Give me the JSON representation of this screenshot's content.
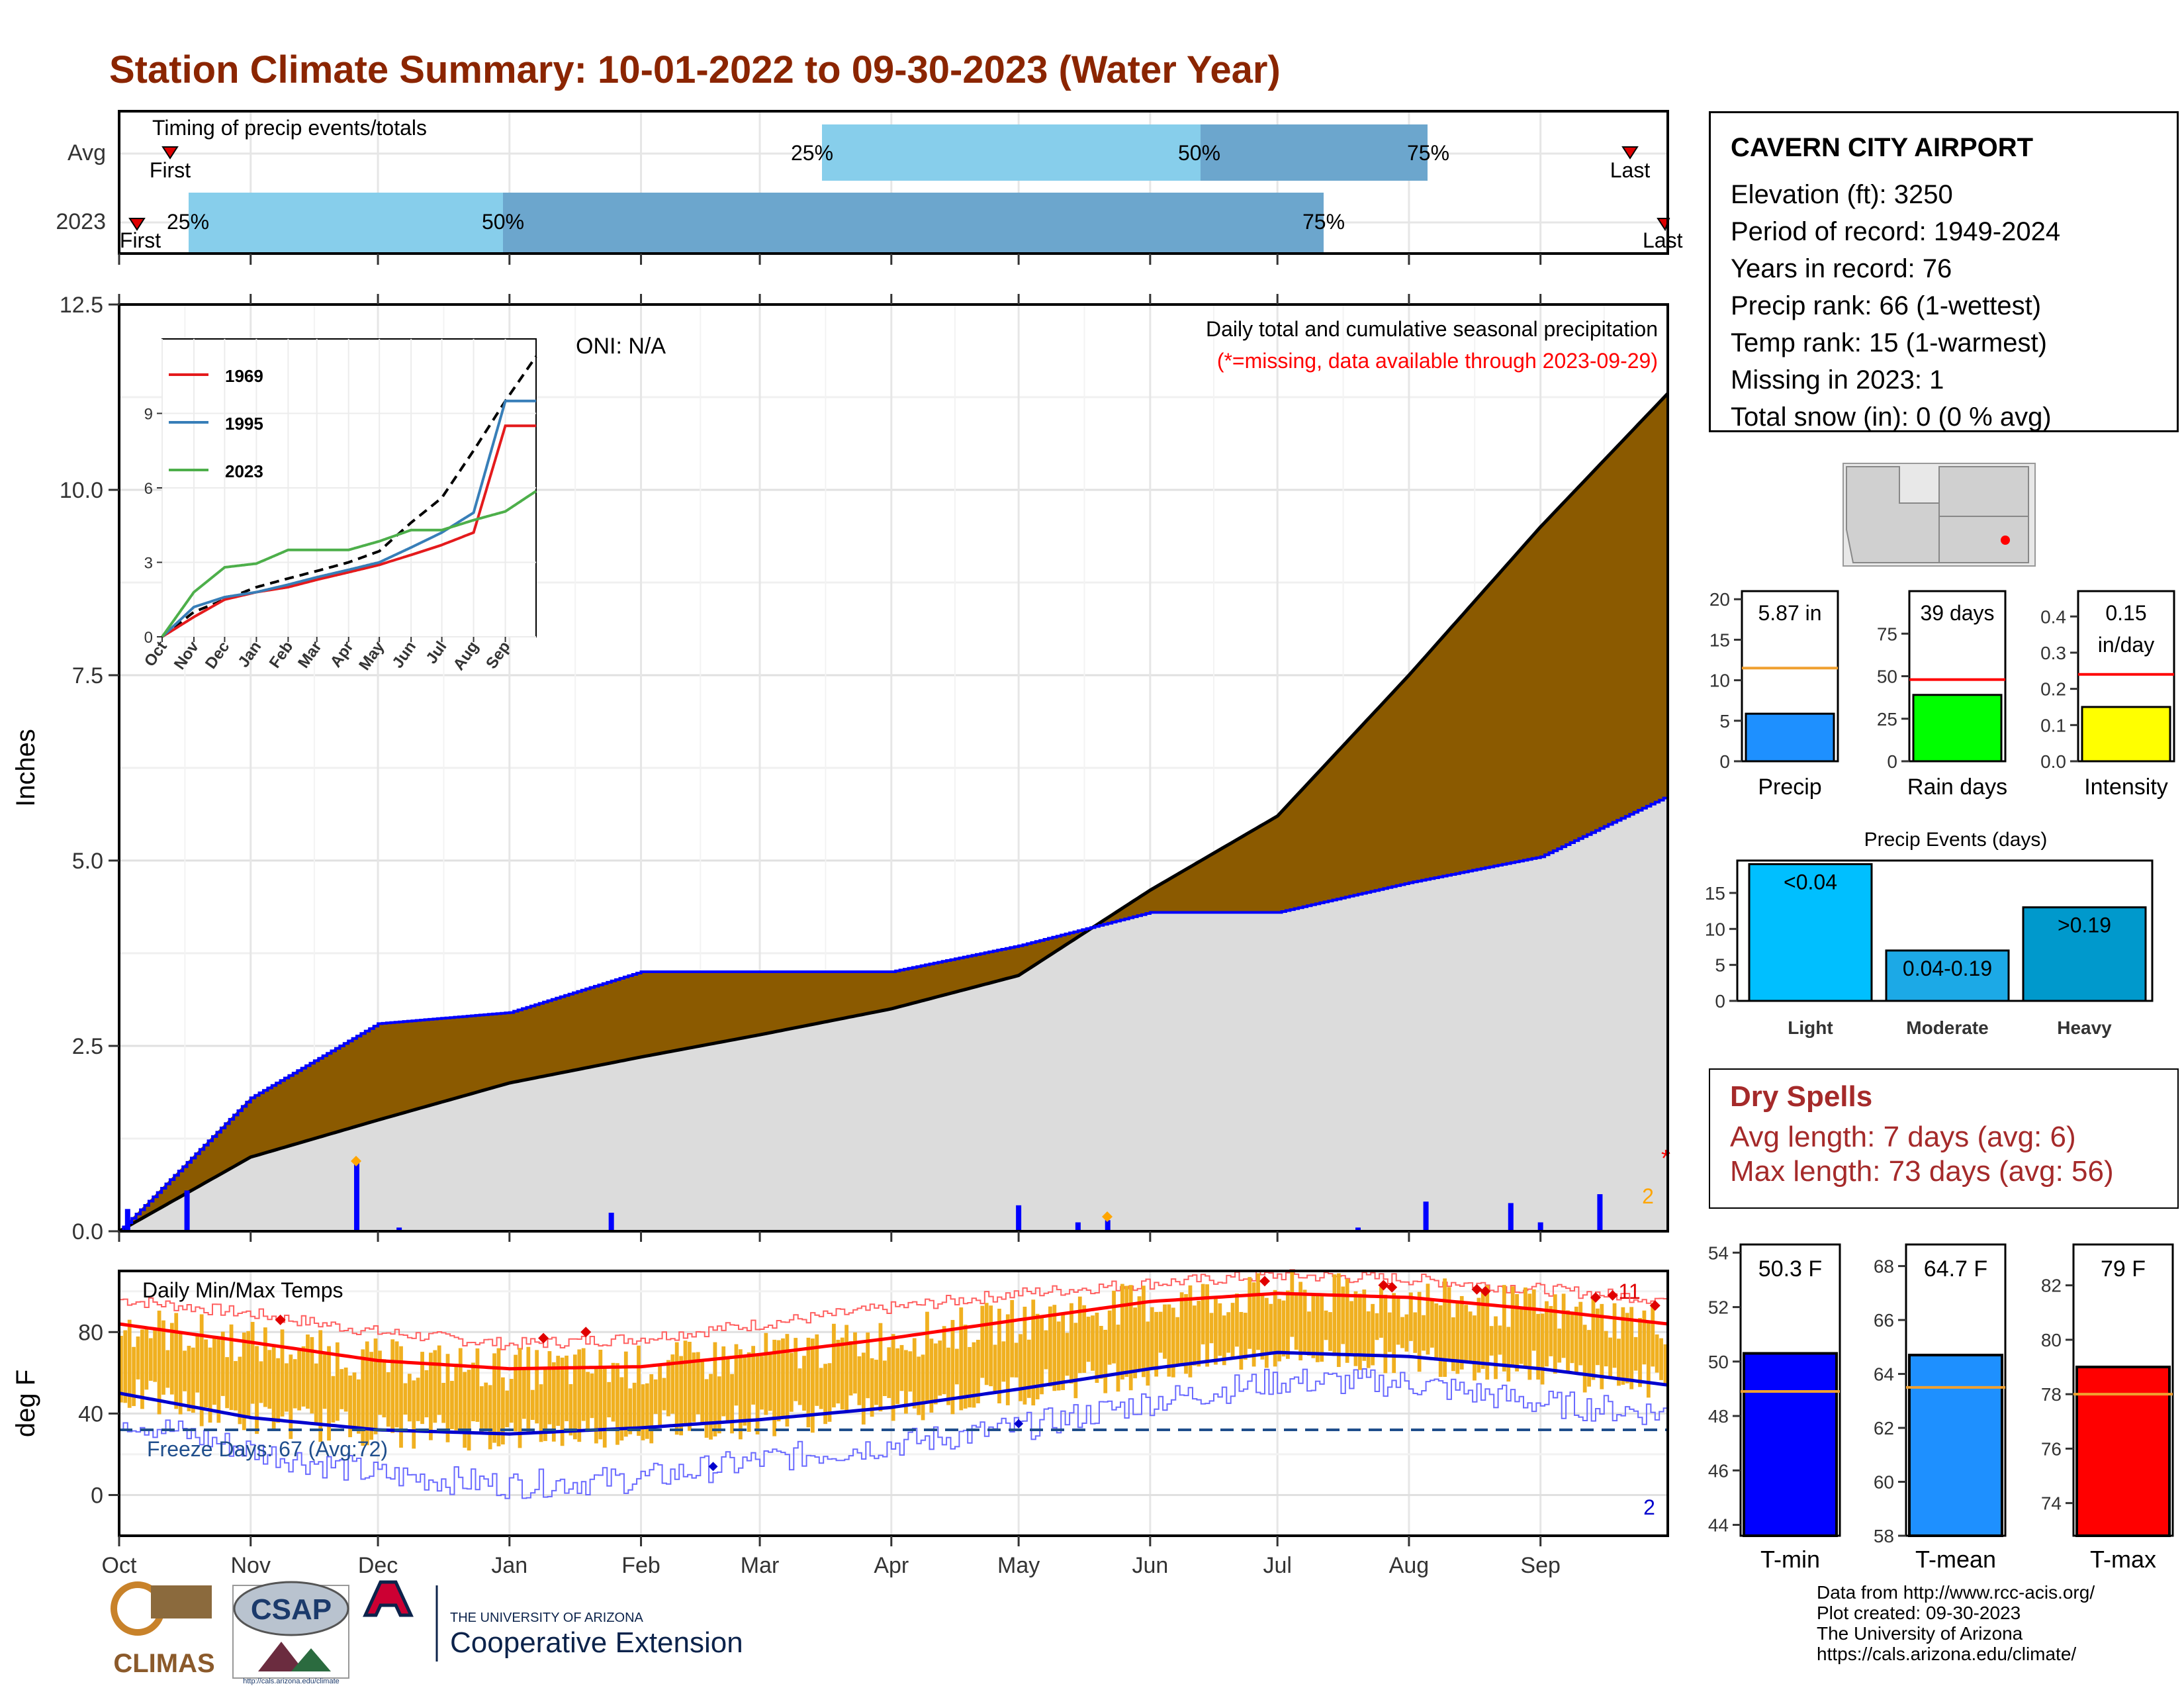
{
  "title": "Station Climate Summary: 10-01-2022 to 09-30-2023 (Water Year)",
  "timing": {
    "label": "Timing of precip events/totals",
    "rows": [
      {
        "name": "Avg",
        "first_label": "First",
        "last_label": "Last",
        "p25": "25%",
        "p50": "50%",
        "p75": "75%"
      },
      {
        "name": "2023",
        "first_label": "First",
        "last_label": "Last",
        "p25": "25%",
        "p50": "50%",
        "p75": "75%"
      }
    ]
  },
  "station": {
    "name": "CAVERN CITY AIRPORT",
    "lines": [
      "Elevation (ft): 3250",
      "Period of record: 1949-2024",
      "Years in record: 76",
      "Precip rank: 66 (1-wettest)",
      "Temp rank: 15 (1-warmest)",
      "Missing in 2023: 1",
      "Total snow (in): 0 (0 % avg)"
    ]
  },
  "precip_panel": {
    "ylabel": "Inches",
    "header": "Daily total and cumulative seasonal precipitation",
    "note": "(*=missing, data available through 2023-09-29)",
    "oni": "ONI: N/A",
    "missing_mark": "*",
    "missing_count": "2",
    "y_ticks": [
      "0.0",
      "2.5",
      "5.0",
      "7.5",
      "10.0",
      "12.5"
    ]
  },
  "inset": {
    "legend": [
      "1969",
      "1995",
      "2023"
    ],
    "y_ticks": [
      "0",
      "3",
      "6",
      "9"
    ],
    "x_ticks": [
      "Oct",
      "Nov",
      "Dec",
      "Jan",
      "Feb",
      "Mar",
      "Apr",
      "May",
      "Jun",
      "Jul",
      "Aug",
      "Sep"
    ]
  },
  "temp_panel": {
    "ylabel": "deg F",
    "label": "Daily Min/Max Temps",
    "freeze": "Freeze Days: 67 (Avg:72)",
    "record_high_count": "11",
    "record_low_count": "2",
    "y_ticks": [
      "0",
      "40",
      "80"
    ]
  },
  "months": [
    "Oct",
    "Nov",
    "Dec",
    "Jan",
    "Feb",
    "Mar",
    "Apr",
    "May",
    "Jun",
    "Jul",
    "Aug",
    "Sep"
  ],
  "mini_precip": [
    {
      "value_label": "5.87 in",
      "name": "Precip",
      "ticks": [
        "0",
        "5",
        "10",
        "15",
        "20"
      ]
    },
    {
      "value_label": "39 days",
      "name": "Rain days",
      "ticks": [
        "0",
        "25",
        "50",
        "75"
      ]
    },
    {
      "value_label": "0.15",
      "value_label2": "in/day",
      "name": "Intensity",
      "ticks": [
        "0.0",
        "0.1",
        "0.2",
        "0.3",
        "0.4"
      ]
    }
  ],
  "events": {
    "title": "Precip Events (days)",
    "ticks": [
      "0",
      "5",
      "10",
      "15"
    ],
    "bars": [
      {
        "label": "<0.04",
        "name": "Light"
      },
      {
        "label": "0.04-0.19",
        "name": "Moderate"
      },
      {
        "label": ">0.19",
        "name": "Heavy"
      }
    ]
  },
  "dry_spells": {
    "title": "Dry Spells",
    "avg": "Avg length: 7 days (avg: 6)",
    "max": "Max length: 73 days (avg: 56)"
  },
  "mini_temp": [
    {
      "value_label": "50.3 F",
      "name": "T-min",
      "ticks": [
        "44",
        "46",
        "48",
        "50",
        "52",
        "54"
      ]
    },
    {
      "value_label": "64.7 F",
      "name": "T-mean",
      "ticks": [
        "58",
        "60",
        "62",
        "64",
        "66",
        "68"
      ]
    },
    {
      "value_label": "79 F",
      "name": "T-max",
      "ticks": [
        "74",
        "76",
        "78",
        "80",
        "82"
      ]
    }
  ],
  "footer": "Data from http://www.rcc-acis.org/\nPlot created: 09-30-2023\nThe University of Arizona\nhttps://cals.arizona.edu/climate/",
  "logos": {
    "climas": "CLIMAS",
    "csap": "CSAP",
    "csap_url": "http://cals.arizona.edu/climate",
    "ua_small": "THE UNIVERSITY OF ARIZONA",
    "ua_big": "Cooperative Extension"
  },
  "colors": {
    "title": "#8b2500",
    "dry": "#a52a2a",
    "above": "#8b5a00",
    "below": "#008000",
    "avg_fill": "#dcdcdc",
    "obs_line": "#0000ff",
    "timing_light": "#87ceeb",
    "timing_dark": "#6ca6cd",
    "tmax": "#ff0000",
    "tmin": "#0000cd",
    "range": "#f0b020"
  },
  "chart_data": [
    {
      "type": "area",
      "title": "Daily total and cumulative seasonal precipitation",
      "ylabel": "Inches",
      "ylim": [
        0,
        12.5
      ],
      "x": [
        "Oct",
        "Nov",
        "Dec",
        "Jan",
        "Feb",
        "Mar",
        "Apr",
        "May",
        "Jun",
        "Jul",
        "Aug",
        "Sep",
        "Oct"
      ],
      "series": [
        {
          "values": [
            0.0,
            1.8,
            2.8,
            2.95,
            3.5,
            3.5,
            3.5,
            3.85,
            4.3,
            4.3,
            4.7,
            5.05,
            5.87
          ]
        },
        {
          "values": [
            0.0,
            1.0,
            1.5,
            2.0,
            2.35,
            2.65,
            3.0,
            3.45,
            4.6,
            5.6,
            7.5,
            9.5,
            11.3
          ]
        }
      ],
      "daily_precip_spikes": [
        {
          "date": "2022-10-03",
          "inches": 0.3
        },
        {
          "date": "2022-10-17",
          "inches": 0.55
        },
        {
          "date": "2022-11-26",
          "inches": 0.95
        },
        {
          "date": "2022-12-06",
          "inches": 0.05
        },
        {
          "date": "2023-01-25",
          "inches": 0.25
        },
        {
          "date": "2023-05-01",
          "inches": 0.35
        },
        {
          "date": "2023-05-15",
          "inches": 0.12
        },
        {
          "date": "2023-05-22",
          "inches": 0.15
        },
        {
          "date": "2023-07-20",
          "inches": 0.05
        },
        {
          "date": "2023-08-05",
          "inches": 0.4
        },
        {
          "date": "2023-08-25",
          "inches": 0.38
        },
        {
          "date": "2023-09-01",
          "inches": 0.12
        },
        {
          "date": "2023-09-15",
          "inches": 0.5
        }
      ]
    },
    {
      "type": "line",
      "ylim": [
        0,
        12
      ],
      "x": [
        "Oct",
        "Nov",
        "Dec",
        "Jan",
        "Feb",
        "Mar",
        "Apr",
        "May",
        "Jun",
        "Jul",
        "Aug",
        "Sep",
        "Oct"
      ],
      "series": [
        {
          "name": "1969",
          "values": [
            0.0,
            0.8,
            1.5,
            1.8,
            2.0,
            2.3,
            2.6,
            2.9,
            3.3,
            3.7,
            4.2,
            8.5,
            8.5
          ]
        },
        {
          "name": "1995",
          "values": [
            0.0,
            1.2,
            1.6,
            1.8,
            2.1,
            2.4,
            2.7,
            3.0,
            3.6,
            4.2,
            5.0,
            9.5,
            9.5
          ]
        },
        {
          "name": "2023",
          "values": [
            0.0,
            1.8,
            2.8,
            2.95,
            3.5,
            3.5,
            3.5,
            3.85,
            4.3,
            4.3,
            4.7,
            5.05,
            5.87
          ]
        },
        {
          "values": [
            0.0,
            1.0,
            1.5,
            2.0,
            2.35,
            2.65,
            3.0,
            3.45,
            4.6,
            5.6,
            7.5,
            9.5,
            11.3
          ]
        }
      ]
    },
    {
      "type": "line",
      "ylabel": "deg F",
      "ylim": [
        -20,
        110
      ],
      "x": [
        "Oct",
        "Nov",
        "Dec",
        "Jan",
        "Feb",
        "Mar",
        "Apr",
        "May",
        "Jun",
        "Jul",
        "Aug",
        "Sep",
        "Oct"
      ],
      "series": [
        {
          "values": [
            84,
            75,
            66,
            62,
            63,
            69,
            77,
            86,
            95,
            99,
            97,
            91,
            84
          ]
        },
        {
          "values": [
            50,
            38,
            32,
            30,
            33,
            37,
            43,
            52,
            62,
            70,
            68,
            62,
            54
          ]
        },
        {
          "values": [
            96,
            89,
            80,
            74,
            77,
            84,
            92,
            99,
            104,
            108,
            106,
            101,
            96
          ]
        },
        {
          "values": [
            38,
            22,
            10,
            5,
            8,
            17,
            25,
            33,
            46,
            56,
            55,
            45,
            40
          ]
        }
      ],
      "freeze_line": 32
    },
    {
      "type": "bar",
      "categories": [
        "Precip",
        "Rain days",
        "Intensity"
      ],
      "values": [
        5.87,
        39,
        0.15
      ],
      "averages": [
        11.5,
        48,
        0.24
      ]
    },
    {
      "type": "bar",
      "title": "Precip Events (days)",
      "categories": [
        "Light",
        "Moderate",
        "Heavy"
      ],
      "values": [
        19,
        7,
        13
      ],
      "ylim": [
        0,
        19.5
      ]
    },
    {
      "type": "bar",
      "categories": [
        "T-min",
        "T-mean",
        "T-max"
      ],
      "values": [
        50.3,
        64.7,
        79
      ],
      "averages": [
        48.9,
        63.5,
        78.0
      ]
    }
  ]
}
